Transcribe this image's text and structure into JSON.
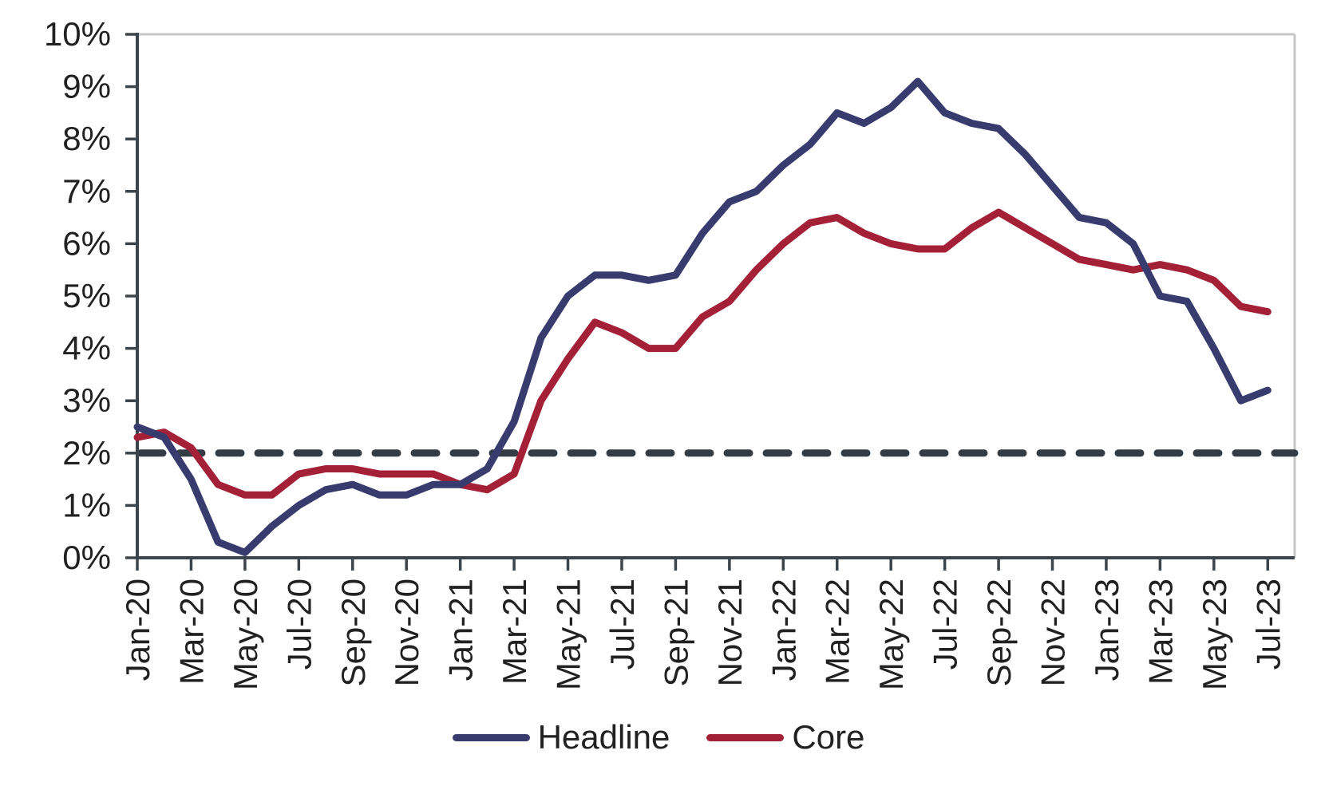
{
  "chart_data": {
    "type": "line",
    "title": "",
    "xlabel": "",
    "ylabel": "",
    "ylim": [
      0,
      10
    ],
    "grid": false,
    "legend_position": "bottom-center",
    "y_tick_labels": [
      "0%",
      "1%",
      "2%",
      "3%",
      "4%",
      "5%",
      "6%",
      "7%",
      "8%",
      "9%",
      "10%"
    ],
    "x": [
      "Jan-20",
      "Feb-20",
      "Mar-20",
      "Apr-20",
      "May-20",
      "Jun-20",
      "Jul-20",
      "Aug-20",
      "Sep-20",
      "Oct-20",
      "Nov-20",
      "Dec-20",
      "Jan-21",
      "Feb-21",
      "Mar-21",
      "Apr-21",
      "May-21",
      "Jun-21",
      "Jul-21",
      "Aug-21",
      "Sep-21",
      "Oct-21",
      "Nov-21",
      "Dec-21",
      "Jan-22",
      "Feb-22",
      "Mar-22",
      "Apr-22",
      "May-22",
      "Jun-22",
      "Jul-22",
      "Aug-22",
      "Sep-22",
      "Oct-22",
      "Nov-22",
      "Dec-22",
      "Jan-23",
      "Feb-23",
      "Mar-23",
      "Apr-23",
      "May-23",
      "Jun-23",
      "Jul-23"
    ],
    "x_tick_labels": [
      "Jan-20",
      "Mar-20",
      "May-20",
      "Jul-20",
      "Sep-20",
      "Nov-20",
      "Jan-21",
      "Mar-21",
      "May-21",
      "Jul-21",
      "Sep-21",
      "Nov-21",
      "Jan-22",
      "Mar-22",
      "May-22",
      "Jul-22",
      "Sep-22",
      "Nov-22",
      "Jan-23",
      "Mar-23",
      "May-23",
      "Jul-23"
    ],
    "series": [
      {
        "name": "Headline",
        "color": "#373B6D",
        "values": [
          2.5,
          2.3,
          1.5,
          0.3,
          0.1,
          0.6,
          1.0,
          1.3,
          1.4,
          1.2,
          1.2,
          1.4,
          1.4,
          1.7,
          2.6,
          4.2,
          5.0,
          5.4,
          5.4,
          5.3,
          5.4,
          6.2,
          6.8,
          7.0,
          7.5,
          7.9,
          8.5,
          8.3,
          8.6,
          9.1,
          8.5,
          8.3,
          8.2,
          7.7,
          7.1,
          6.5,
          6.4,
          6.0,
          5.0,
          4.9,
          4.0,
          3.0,
          3.2
        ]
      },
      {
        "name": "Core",
        "color": "#A32037",
        "values": [
          2.3,
          2.4,
          2.1,
          1.4,
          1.2,
          1.2,
          1.6,
          1.7,
          1.7,
          1.6,
          1.6,
          1.6,
          1.4,
          1.3,
          1.6,
          3.0,
          3.8,
          4.5,
          4.3,
          4.0,
          4.0,
          4.6,
          4.9,
          5.5,
          6.0,
          6.4,
          6.5,
          6.2,
          6.0,
          5.9,
          5.9,
          6.3,
          6.6,
          6.3,
          6.0,
          5.7,
          5.6,
          5.5,
          5.6,
          5.5,
          5.3,
          4.8,
          4.7
        ]
      }
    ],
    "reference_line": {
      "value": 2,
      "style": "dashed",
      "color": "#333C44"
    }
  },
  "colors": {
    "axis": "#3C444C",
    "plot_border": "#C6C6C6",
    "tick_text": "#212121",
    "background": "#ffffff"
  }
}
